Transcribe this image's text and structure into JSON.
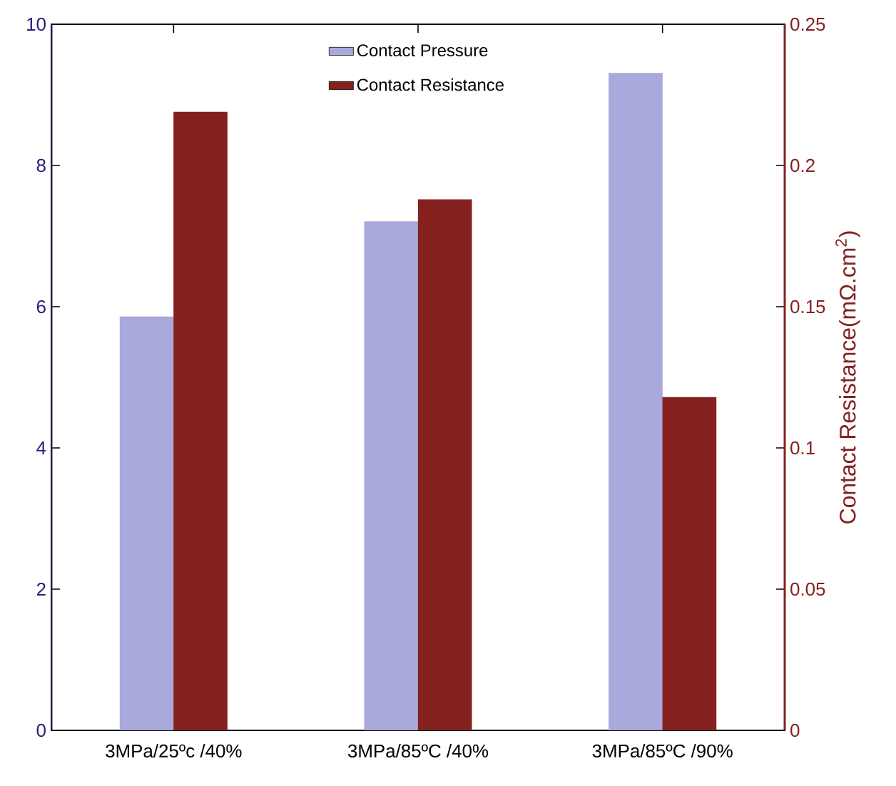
{
  "chart_data": {
    "type": "bar",
    "categories": [
      "3MPa/25ºc  /40%",
      "3MPa/85ºC  /40%",
      "3MPa/85ºC  /90%"
    ],
    "series": [
      {
        "name": "Contact Pressure",
        "color": "#a9a9dc",
        "values": [
          5.86,
          7.21,
          9.31
        ]
      },
      {
        "name": "Contact Resistance",
        "color": "#84211f",
        "axis": "y2",
        "values": [
          0.219,
          0.188,
          0.118
        ]
      }
    ],
    "y2label": "Contact Resistance(mΩ.cm$^{2}$)",
    "ylim": [
      0,
      10
    ],
    "yticks": [
      0,
      2,
      4,
      6,
      8,
      10
    ],
    "y2lim": [
      0,
      0.25
    ],
    "y2ticks": [
      0,
      0.05,
      0.1,
      0.15,
      0.2,
      0.25
    ],
    "legend": "top",
    "grid": false
  }
}
